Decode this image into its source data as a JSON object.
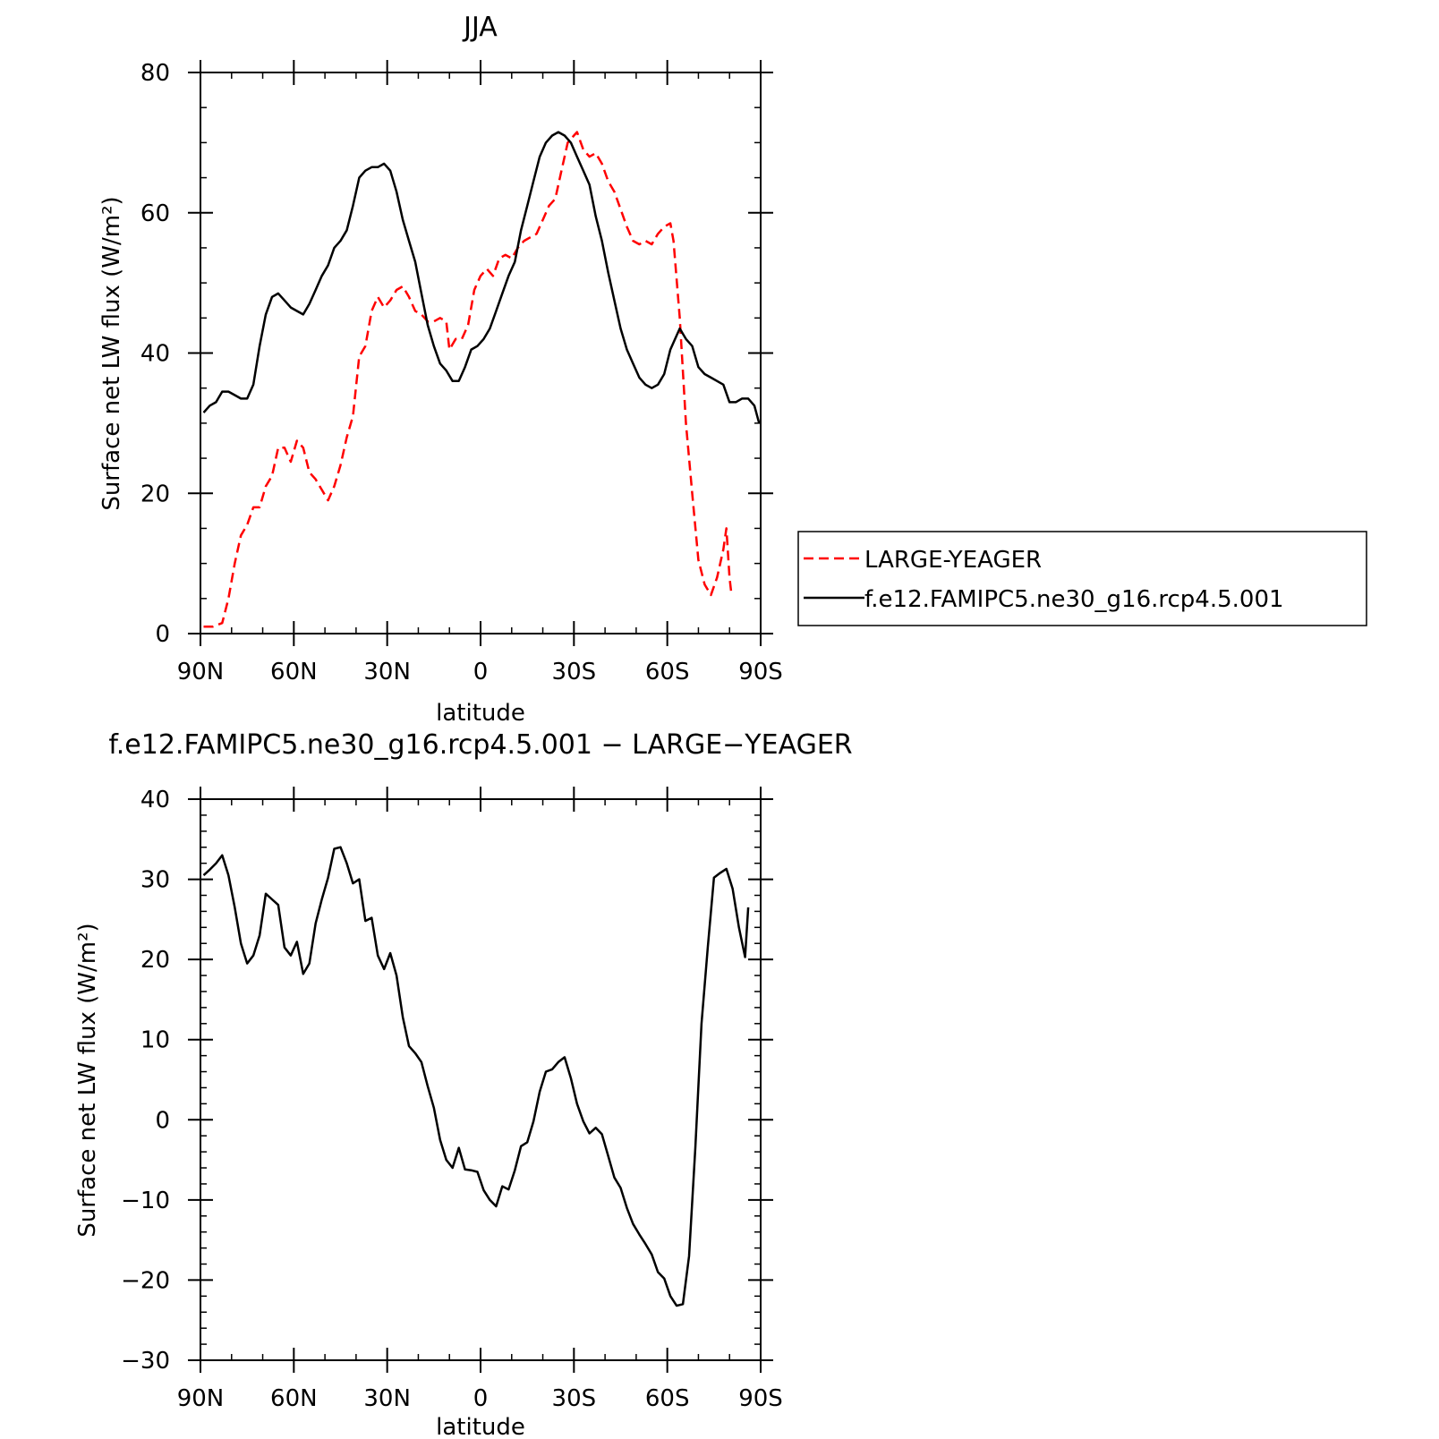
{
  "chart_data": [
    {
      "type": "line",
      "title": "JJA",
      "xlabel": "latitude",
      "ylabel": "Surface net LW flux (W/m²)",
      "x_ticks": [
        "90N",
        "60N",
        "30N",
        "0",
        "30S",
        "60S",
        "90S"
      ],
      "x_tick_values": [
        90,
        60,
        30,
        0,
        -30,
        -60,
        -90
      ],
      "xlim": [
        90,
        -90
      ],
      "ylim": [
        0,
        80
      ],
      "y_ticks": [
        0,
        20,
        40,
        60,
        80
      ],
      "grid": false,
      "legend_position": "right",
      "series": [
        {
          "name": "LARGE-YEAGER",
          "color": "#ff0000",
          "dash": "dashed",
          "points": [
            [
              89,
              1
            ],
            [
              86,
              1
            ],
            [
              83,
              1.5
            ],
            [
              81,
              5
            ],
            [
              79,
              10
            ],
            [
              77,
              14
            ],
            [
              75,
              15.5
            ],
            [
              73,
              18
            ],
            [
              71,
              18
            ],
            [
              69,
              21
            ],
            [
              67,
              22.5
            ],
            [
              65,
              26.5
            ],
            [
              63,
              26.5
            ],
            [
              61,
              24.5
            ],
            [
              59,
              27.5
            ],
            [
              57,
              26.5
            ],
            [
              55,
              23
            ],
            [
              53,
              22
            ],
            [
              51,
              20.5
            ],
            [
              49,
              19
            ],
            [
              47,
              21
            ],
            [
              45,
              24
            ],
            [
              43,
              28
            ],
            [
              41,
              31
            ],
            [
              39,
              39.5
            ],
            [
              37,
              41
            ],
            [
              35,
              46
            ],
            [
              33,
              48
            ],
            [
              31,
              46.5
            ],
            [
              29,
              47.5
            ],
            [
              27,
              49
            ],
            [
              25,
              49.5
            ],
            [
              23,
              48
            ],
            [
              21,
              46
            ],
            [
              19,
              45.5
            ],
            [
              17,
              44.5
            ],
            [
              15,
              44.5
            ],
            [
              13,
              45
            ],
            [
              11,
              44.5
            ],
            [
              10,
              40.5
            ],
            [
              8,
              42
            ],
            [
              6,
              42
            ],
            [
              4,
              44
            ],
            [
              2,
              49
            ],
            [
              0,
              51
            ],
            [
              -2,
              52
            ],
            [
              -4,
              51
            ],
            [
              -6,
              53.5
            ],
            [
              -8,
              54
            ],
            [
              -10,
              53.5
            ],
            [
              -12,
              55
            ],
            [
              -14,
              56
            ],
            [
              -16,
              56.5
            ],
            [
              -18,
              57
            ],
            [
              -20,
              59
            ],
            [
              -22,
              61
            ],
            [
              -24,
              62
            ],
            [
              -26,
              66
            ],
            [
              -28,
              70
            ],
            [
              -30,
              71
            ],
            [
              -31,
              71.5
            ],
            [
              -33,
              69
            ],
            [
              -35,
              68
            ],
            [
              -37,
              68.5
            ],
            [
              -39,
              67
            ],
            [
              -41,
              64.5
            ],
            [
              -43,
              63
            ],
            [
              -45,
              60.5
            ],
            [
              -47,
              58
            ],
            [
              -49,
              56
            ],
            [
              -51,
              55.5
            ],
            [
              -53,
              56
            ],
            [
              -55,
              55.5
            ],
            [
              -57,
              57
            ],
            [
              -59,
              58
            ],
            [
              -61,
              58.5
            ],
            [
              -62,
              56
            ],
            [
              -64,
              45
            ],
            [
              -66,
              30
            ],
            [
              -68,
              20
            ],
            [
              -70,
              10.5
            ],
            [
              -72,
              7
            ],
            [
              -74,
              5.5
            ],
            [
              -76,
              8
            ],
            [
              -78,
              12
            ],
            [
              -79,
              15
            ],
            [
              -80,
              8
            ],
            [
              -80.5,
              6
            ]
          ]
        },
        {
          "name": "f.e12.FAMIPC5.ne30_g16.rcp4.5.001",
          "color": "#000000",
          "dash": "solid",
          "points": [
            [
              89,
              31.5
            ],
            [
              87,
              32.5
            ],
            [
              85,
              33
            ],
            [
              83,
              34.5
            ],
            [
              81,
              34.5
            ],
            [
              79,
              34
            ],
            [
              77,
              33.5
            ],
            [
              75,
              33.5
            ],
            [
              73,
              35.5
            ],
            [
              71,
              41
            ],
            [
              69,
              45.5
            ],
            [
              67,
              48
            ],
            [
              65,
              48.5
            ],
            [
              63,
              47.5
            ],
            [
              61,
              46.5
            ],
            [
              59,
              46
            ],
            [
              57,
              45.5
            ],
            [
              55,
              47
            ],
            [
              53,
              49
            ],
            [
              51,
              51
            ],
            [
              49,
              52.5
            ],
            [
              47,
              55
            ],
            [
              45,
              56
            ],
            [
              43,
              57.5
            ],
            [
              41,
              61
            ],
            [
              39,
              65
            ],
            [
              37,
              66
            ],
            [
              35,
              66.5
            ],
            [
              33,
              66.5
            ],
            [
              31,
              67
            ],
            [
              29,
              66
            ],
            [
              27,
              63
            ],
            [
              25,
              59
            ],
            [
              23,
              56
            ],
            [
              21,
              53
            ],
            [
              19,
              48.5
            ],
            [
              17,
              44
            ],
            [
              15,
              41
            ],
            [
              13,
              38.5
            ],
            [
              11,
              37.5
            ],
            [
              9,
              36
            ],
            [
              7,
              36
            ],
            [
              5,
              38
            ],
            [
              3,
              40.5
            ],
            [
              1,
              41
            ],
            [
              -1,
              42
            ],
            [
              -3,
              43.5
            ],
            [
              -5,
              46
            ],
            [
              -7,
              48.5
            ],
            [
              -9,
              51
            ],
            [
              -11,
              53
            ],
            [
              -13,
              57.5
            ],
            [
              -15,
              61
            ],
            [
              -17,
              64.5
            ],
            [
              -19,
              68
            ],
            [
              -21,
              70
            ],
            [
              -23,
              71
            ],
            [
              -25,
              71.5
            ],
            [
              -27,
              71
            ],
            [
              -29,
              70
            ],
            [
              -31,
              68
            ],
            [
              -33,
              66
            ],
            [
              -35,
              64
            ],
            [
              -37,
              59.5
            ],
            [
              -39,
              56
            ],
            [
              -41,
              51.5
            ],
            [
              -43,
              47.5
            ],
            [
              -45,
              43.5
            ],
            [
              -47,
              40.5
            ],
            [
              -49,
              38.5
            ],
            [
              -51,
              36.5
            ],
            [
              -53,
              35.5
            ],
            [
              -55,
              35
            ],
            [
              -57,
              35.5
            ],
            [
              -59,
              37
            ],
            [
              -61,
              40.5
            ],
            [
              -63,
              42.5
            ],
            [
              -64,
              43.5
            ],
            [
              -66,
              42
            ],
            [
              -68,
              41
            ],
            [
              -70,
              38
            ],
            [
              -72,
              37
            ],
            [
              -74,
              36.5
            ],
            [
              -76,
              36
            ],
            [
              -78,
              35.5
            ],
            [
              -80,
              33
            ],
            [
              -82,
              33
            ],
            [
              -84,
              33.5
            ],
            [
              -86,
              33.5
            ],
            [
              -88,
              32.5
            ],
            [
              -89.5,
              30
            ]
          ]
        }
      ]
    },
    {
      "type": "line",
      "title": "f.e12.FAMIPC5.ne30_g16.rcp4.5.001 − LARGE−YEAGER",
      "xlabel": "latitude",
      "ylabel": "Surface net LW flux (W/m²)",
      "x_ticks": [
        "90N",
        "60N",
        "30N",
        "0",
        "30S",
        "60S",
        "90S"
      ],
      "x_tick_values": [
        90,
        60,
        30,
        0,
        -30,
        -60,
        -90
      ],
      "xlim": [
        90,
        -90
      ],
      "ylim": [
        -30,
        40
      ],
      "y_ticks": [
        -30,
        -20,
        -10,
        0,
        10,
        20,
        30,
        40
      ],
      "grid": false,
      "series": [
        {
          "color": "#000000",
          "dash": "solid",
          "points": [
            [
              89,
              30.5
            ],
            [
              87,
              31.2
            ],
            [
              85,
              32
            ],
            [
              83,
              33
            ],
            [
              81,
              30.5
            ],
            [
              79,
              26.5
            ],
            [
              77,
              22
            ],
            [
              75,
              19.5
            ],
            [
              73,
              20.5
            ],
            [
              71,
              23
            ],
            [
              69,
              28.2
            ],
            [
              67,
              27.5
            ],
            [
              65,
              26.8
            ],
            [
              63,
              21.5
            ],
            [
              61,
              20.5
            ],
            [
              59,
              22.2
            ],
            [
              57,
              18.2
            ],
            [
              55,
              19.5
            ],
            [
              53,
              24.5
            ],
            [
              51,
              27.5
            ],
            [
              49,
              30.2
            ],
            [
              47,
              33.8
            ],
            [
              45,
              34
            ],
            [
              43,
              32
            ],
            [
              41,
              29.5
            ],
            [
              39,
              30
            ],
            [
              37,
              24.8
            ],
            [
              35,
              25.2
            ],
            [
              33,
              20.5
            ],
            [
              31,
              18.8
            ],
            [
              29,
              20.8
            ],
            [
              27,
              18
            ],
            [
              25,
              12.8
            ],
            [
              23,
              9.2
            ],
            [
              21,
              8.3
            ],
            [
              19,
              7.2
            ],
            [
              17,
              4.2
            ],
            [
              15,
              1.5
            ],
            [
              13,
              -2.5
            ],
            [
              11,
              -5
            ],
            [
              9,
              -6
            ],
            [
              7,
              -3.5
            ],
            [
              5,
              -6.2
            ],
            [
              3,
              -6.3
            ],
            [
              1,
              -6.5
            ],
            [
              -1,
              -8.8
            ],
            [
              -3,
              -10
            ],
            [
              -5,
              -10.8
            ],
            [
              -7,
              -8.3
            ],
            [
              -9,
              -8.7
            ],
            [
              -11,
              -6.3
            ],
            [
              -13,
              -3.3
            ],
            [
              -15,
              -2.8
            ],
            [
              -17,
              -0.2
            ],
            [
              -19,
              3.5
            ],
            [
              -21,
              6
            ],
            [
              -23,
              6.3
            ],
            [
              -25,
              7.2
            ],
            [
              -27,
              7.8
            ],
            [
              -29,
              5.2
            ],
            [
              -31,
              2
            ],
            [
              -33,
              -0.2
            ],
            [
              -35,
              -1.7
            ],
            [
              -37,
              -1
            ],
            [
              -39,
              -1.8
            ],
            [
              -41,
              -4.5
            ],
            [
              -43,
              -7.2
            ],
            [
              -45,
              -8.5
            ],
            [
              -47,
              -11
            ],
            [
              -49,
              -13
            ],
            [
              -51,
              -14.3
            ],
            [
              -53,
              -15.5
            ],
            [
              -55,
              -16.8
            ],
            [
              -57,
              -19
            ],
            [
              -59,
              -19.8
            ],
            [
              -61,
              -22
            ],
            [
              -63,
              -23.2
            ],
            [
              -65,
              -23
            ],
            [
              -67,
              -17
            ],
            [
              -69,
              -3.5
            ],
            [
              -71,
              12
            ],
            [
              -73,
              21.5
            ],
            [
              -75,
              30.2
            ],
            [
              -77,
              30.8
            ],
            [
              -79,
              31.3
            ],
            [
              -81,
              28.8
            ],
            [
              -83,
              24
            ],
            [
              -85,
              20.3
            ],
            [
              -86,
              26.5
            ]
          ]
        }
      ]
    }
  ]
}
